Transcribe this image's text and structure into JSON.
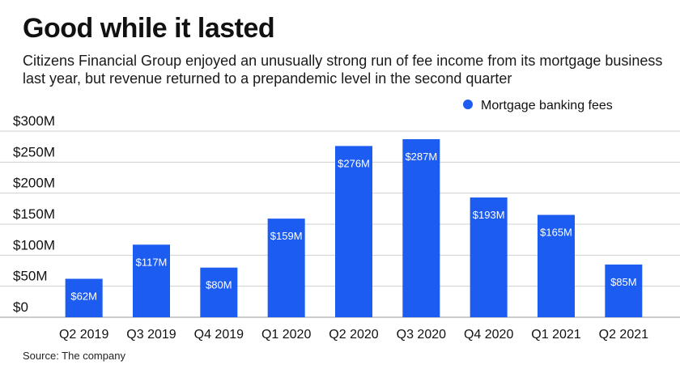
{
  "header": {
    "title": "Good while it lasted",
    "subtitle": "Citizens Financial Group enjoyed an unusually strong run of fee income from its mortgage business last year, but revenue returned to a prepandemic level in the second quarter"
  },
  "footer": {
    "source": "Source: The company"
  },
  "colors": {
    "bar": "#1d5cf0",
    "grid": "#cfcfcf",
    "text": "#111111",
    "bar_label": "#ffffff"
  },
  "chart_data": {
    "type": "bar",
    "categories": [
      "Q2 2019",
      "Q3 2019",
      "Q4 2019",
      "Q1 2020",
      "Q2 2020",
      "Q3 2020",
      "Q4 2020",
      "Q1 2021",
      "Q2 2021"
    ],
    "series": [
      {
        "name": "Mortgage banking fees",
        "values": [
          62,
          117,
          80,
          159,
          276,
          287,
          193,
          165,
          85
        ],
        "data_labels": [
          "$62M",
          "$117M",
          "$80M",
          "$159M",
          "$276M",
          "$287M",
          "$193M",
          "$165M",
          "$85M"
        ]
      }
    ],
    "ylim": [
      0,
      300
    ],
    "yticks": [
      0,
      50,
      100,
      150,
      200,
      250,
      300
    ],
    "ytick_labels": [
      "$0",
      "$50M",
      "$100M",
      "$150M",
      "$200M",
      "$250M",
      "$300M"
    ],
    "grid": true,
    "legend_position": "top-right",
    "title": "Good while it lasted",
    "xlabel": "",
    "ylabel": ""
  }
}
